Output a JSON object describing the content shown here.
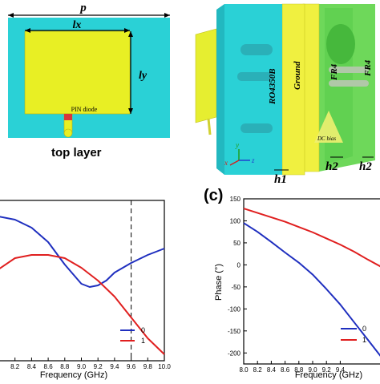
{
  "top_layer": {
    "label_p": "p",
    "label_lx": "lx",
    "label_ly": "ly",
    "label_diode": "PIN diode",
    "caption": "top layer"
  },
  "stack_3d": {
    "label_ro4350b": "RO4350B",
    "label_ground": "Ground",
    "label_fr4_a": "FR4",
    "label_fr4_b": "FR4",
    "label_dc_bias": "DC bias",
    "label_h1": "h1",
    "label_h2_a": "h2",
    "label_h2_b": "h2",
    "axis_x": "x",
    "axis_y": "y",
    "axis_z": "z"
  },
  "colors": {
    "substrate": "#2ad1d6",
    "patch": "#e8ef24",
    "diode": "#d8383a",
    "ground": "#f0f040",
    "fr4": "#6ed85a",
    "series_0": "#1f2fbf",
    "series_1": "#e01f1f"
  },
  "panel_c_label": "(c)",
  "chart_data": [
    {
      "type": "line",
      "xlabel": "Frequency (GHz)",
      "xlim": [
        8.0,
        10.0
      ],
      "x_ticks": [
        "8.2",
        "8.4",
        "8.6",
        "8.8",
        "9.0",
        "9.2",
        "9.4",
        "9.6",
        "9.8",
        "10.0"
      ],
      "ylim": [
        0,
        1
      ],
      "vline_x": 9.6,
      "legend": [
        "0",
        "1"
      ],
      "legend_position": "bottom-right",
      "series": [
        {
          "name": "0",
          "x": [
            8.0,
            8.2,
            8.4,
            8.6,
            8.8,
            9.0,
            9.1,
            9.2,
            9.3,
            9.4,
            9.6,
            9.8,
            10.0
          ],
          "y": [
            0.9,
            0.88,
            0.83,
            0.74,
            0.6,
            0.48,
            0.46,
            0.47,
            0.5,
            0.55,
            0.61,
            0.66,
            0.7
          ]
        },
        {
          "name": "1",
          "x": [
            8.0,
            8.2,
            8.4,
            8.6,
            8.8,
            9.0,
            9.2,
            9.4,
            9.6,
            9.8,
            10.0
          ],
          "y": [
            0.57,
            0.64,
            0.66,
            0.66,
            0.64,
            0.58,
            0.5,
            0.4,
            0.27,
            0.14,
            0.04
          ]
        }
      ]
    },
    {
      "type": "line",
      "xlabel": "Frequency (GHz)",
      "ylabel": "Phase (°)",
      "xlim": [
        8.0,
        10.0
      ],
      "ylim": [
        -225,
        150
      ],
      "x_ticks": [
        "8.0",
        "8.2",
        "8.4",
        "8.6",
        "8.8",
        "9.0",
        "9.2",
        "9.4"
      ],
      "y_ticks": [
        "150",
        "100",
        "50",
        "0",
        "-50",
        "-100",
        "-150",
        "-200"
      ],
      "legend": [
        "0",
        "1"
      ],
      "legend_position": "bottom-right",
      "series": [
        {
          "name": "0",
          "x": [
            8.0,
            8.2,
            8.4,
            8.6,
            8.8,
            9.0,
            9.2,
            9.4,
            9.6,
            9.8,
            10.0
          ],
          "y": [
            95,
            75,
            52,
            28,
            5,
            -22,
            -55,
            -90,
            -130,
            -170,
            -210
          ]
        },
        {
          "name": "1",
          "x": [
            8.0,
            8.2,
            8.4,
            8.6,
            8.8,
            9.0,
            9.2,
            9.4,
            9.6,
            9.8,
            10.0
          ],
          "y": [
            128,
            118,
            108,
            98,
            86,
            74,
            60,
            46,
            30,
            12,
            -5
          ]
        }
      ]
    }
  ]
}
